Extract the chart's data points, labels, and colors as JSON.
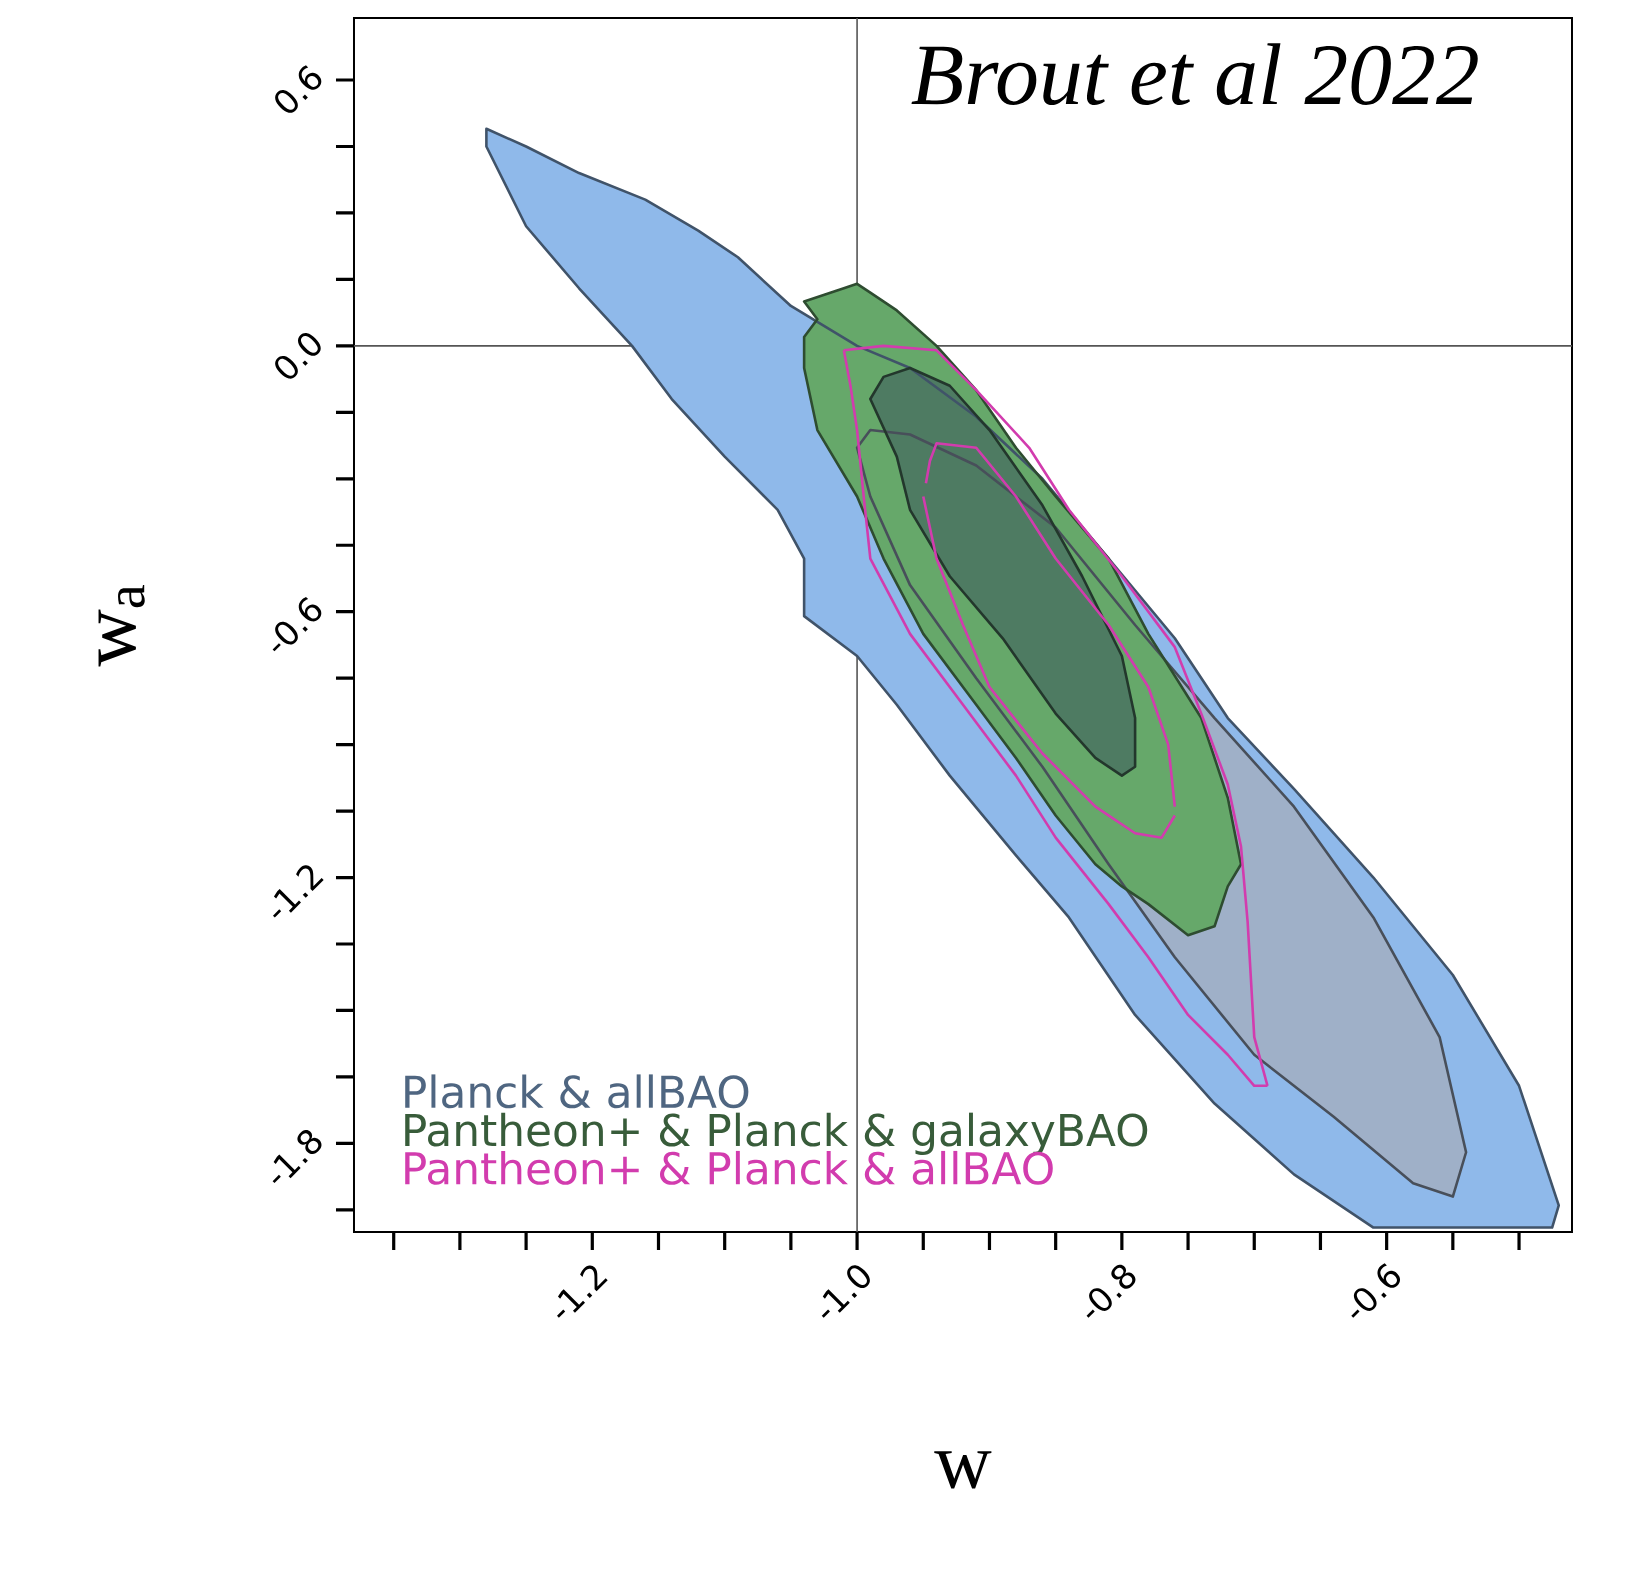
{
  "chart_data": {
    "type": "area",
    "xlabel": "w",
    "ylabel": "w$_{a}$",
    "annotations": [
      "Brout et al 2022"
    ],
    "xlim": [
      -1.38,
      -0.46
    ],
    "ylim": [
      -2.0,
      0.74
    ],
    "xticks": [
      {
        "value": -1.35,
        "label": null
      },
      {
        "value": -1.3,
        "label": null
      },
      {
        "value": -1.25,
        "label": null
      },
      -1.2,
      {
        "value": -1.15,
        "label": null
      },
      {
        "value": -1.1,
        "label": null
      },
      {
        "value": -1.05,
        "label": null
      },
      {
        "value": -1.0,
        "label": "-1.0"
      },
      {
        "value": -0.95,
        "label": null
      },
      {
        "value": -0.9,
        "label": null
      },
      {
        "value": -0.85,
        "label": null
      },
      -0.8,
      {
        "value": -0.75,
        "label": null
      },
      {
        "value": -0.7,
        "label": null
      },
      {
        "value": -0.65,
        "label": null
      },
      -0.6,
      {
        "value": -0.55,
        "label": null
      },
      {
        "value": -0.5,
        "label": null
      }
    ],
    "yticks": [
      {
        "value": -1.95,
        "label": null
      },
      -1.8,
      {
        "value": -1.65,
        "label": null
      },
      {
        "value": -1.5,
        "label": null
      },
      {
        "value": -1.35,
        "label": null
      },
      -1.2,
      {
        "value": -1.05,
        "label": null
      },
      {
        "value": -0.9,
        "label": null
      },
      {
        "value": -0.75,
        "label": null
      },
      -0.6,
      {
        "value": -0.45,
        "label": null
      },
      {
        "value": -0.3,
        "label": null
      },
      {
        "value": -0.15,
        "label": null
      },
      {
        "value": 0,
        "label": "0.0"
      },
      {
        "value": 0.15,
        "label": null
      },
      {
        "value": 0.3,
        "label": null
      },
      {
        "value": 0.45,
        "label": null
      },
      0.6
    ],
    "ref_lines": [
      {
        "axis": "x",
        "value": -1.0,
        "color": "#555555"
      },
      {
        "axis": "y",
        "value": 0,
        "color": "#555555"
      }
    ],
    "legend": "bottom left",
    "series": [
      {
        "name": "Planck & allBAO",
        "color": "#8fb9ea",
        "x": [
          -1.28,
          -1.25,
          -1.21,
          -1.16,
          -1.12,
          -1.09,
          -1.05,
          -1.0,
          -0.96,
          -0.91,
          -0.86,
          -0.81,
          -0.76,
          -0.72,
          -0.67,
          -0.61,
          -0.55,
          -0.5,
          -0.47,
          -0.475,
          -0.61,
          -0.67,
          -0.73,
          -0.79,
          -0.84,
          -0.88,
          -0.93,
          -0.97,
          -1.0,
          -1.04,
          -1.04,
          -1.06,
          -1.1,
          -1.14,
          -1.17,
          -1.21,
          -1.25,
          -1.28
        ],
        "values": [
          0.49,
          0.45,
          0.39,
          0.33,
          0.26,
          0.2,
          0.09,
          0.0,
          -0.05,
          -0.16,
          -0.3,
          -0.48,
          -0.66,
          -0.84,
          -1.0,
          -1.2,
          -1.42,
          -1.67,
          -1.94,
          -1.99,
          -1.99,
          -1.87,
          -1.71,
          -1.51,
          -1.29,
          -1.15,
          -0.97,
          -0.81,
          -0.7,
          -0.61,
          -0.48,
          -0.37,
          -0.25,
          -0.12,
          0.0,
          0.13,
          0.27,
          0.45
        ]
      },
      {
        "color": "#9fb0c8",
        "x": [
          -0.99,
          -0.96,
          -0.91,
          -0.85,
          -0.79,
          -0.73,
          -0.67,
          -0.61,
          -0.56,
          -0.54,
          -0.55,
          -0.58,
          -0.64,
          -0.7,
          -0.76,
          -0.81,
          -0.86,
          -0.91,
          -0.96,
          -0.99,
          -1.0
        ],
        "values": [
          -0.19,
          -0.2,
          -0.27,
          -0.41,
          -0.63,
          -0.84,
          -1.04,
          -1.29,
          -1.56,
          -1.82,
          -1.92,
          -1.89,
          -1.74,
          -1.6,
          -1.38,
          -1.17,
          -0.95,
          -0.75,
          -0.54,
          -0.34,
          -0.23
        ]
      },
      {
        "name": "Pantheon+ & Planck & galaxyBAO",
        "color": "#66a86a",
        "x": [
          -1.04,
          -1.01,
          -1.0,
          -0.99,
          -0.97,
          -0.94,
          -0.91,
          -0.88,
          -0.85,
          -0.81,
          -0.78,
          -0.74,
          -0.72,
          -0.71,
          -0.72,
          -0.73,
          -0.75,
          -0.78,
          -0.8,
          -0.82,
          -0.85,
          -0.88,
          -0.91,
          -0.95,
          -0.98,
          -1.0,
          -1.03,
          -1.04,
          -1.04,
          -1.03
        ],
        "values": [
          0.1,
          0.13,
          0.14,
          0.12,
          0.08,
          0.0,
          -0.1,
          -0.23,
          -0.34,
          -0.48,
          -0.65,
          -0.84,
          -1.02,
          -1.17,
          -1.22,
          -1.31,
          -1.33,
          -1.26,
          -1.22,
          -1.17,
          -1.06,
          -0.93,
          -0.81,
          -0.65,
          -0.48,
          -0.34,
          -0.19,
          -0.05,
          0.02,
          0.06
        ]
      },
      {
        "color": "#4e7b62",
        "x": [
          -0.98,
          -0.96,
          -0.93,
          -0.9,
          -0.86,
          -0.83,
          -0.8,
          -0.79,
          -0.79,
          -0.8,
          -0.82,
          -0.85,
          -0.89,
          -0.93,
          -0.96,
          -0.97,
          -0.99
        ],
        "values": [
          -0.07,
          -0.05,
          -0.09,
          -0.19,
          -0.36,
          -0.52,
          -0.7,
          -0.84,
          -0.95,
          -0.97,
          -0.93,
          -0.83,
          -0.66,
          -0.52,
          -0.37,
          -0.25,
          -0.12
        ]
      },
      {
        "name": "Pantheon+ & Planck & allBAO",
        "type": "line",
        "color": "#d23cae",
        "x": [
          -1.01,
          -0.98,
          -0.94,
          -0.91,
          -0.87,
          -0.84,
          -0.8,
          -0.76,
          -0.74,
          -0.72,
          -0.71,
          -0.705,
          -0.7,
          -0.69
        ],
        "values": [
          -0.01,
          0.0,
          -0.01,
          -0.1,
          -0.23,
          -0.37,
          -0.52,
          -0.68,
          -0.83,
          -0.99,
          -1.13,
          -1.3,
          -1.56,
          -1.67
        ]
      },
      {
        "type": "line",
        "color": "#d23cae",
        "x": [
          -1.01,
          -1.005,
          -1.0,
          -0.995,
          -0.99,
          -0.96,
          -0.92,
          -0.88,
          -0.85,
          -0.81,
          -0.78,
          -0.75,
          -0.72,
          -0.7,
          -0.69
        ],
        "values": [
          -0.01,
          -0.09,
          -0.19,
          -0.34,
          -0.48,
          -0.65,
          -0.81,
          -0.97,
          -1.11,
          -1.26,
          -1.38,
          -1.51,
          -1.6,
          -1.67,
          -1.67
        ]
      },
      {
        "type": "line",
        "color": "#d23cae",
        "x": [
          -0.948,
          -0.945,
          -0.94,
          -0.91,
          -0.88,
          -0.85,
          -0.81,
          -0.78,
          -0.765,
          -0.76
        ],
        "values": [
          -0.31,
          -0.26,
          -0.22,
          -0.23,
          -0.34,
          -0.48,
          -0.63,
          -0.77,
          -0.9,
          -1.04
        ]
      },
      {
        "type": "line",
        "color": "#d23cae",
        "x": [
          -0.95,
          -0.94,
          -0.92,
          -0.9,
          -0.86,
          -0.82,
          -0.79,
          -0.77,
          -0.76
        ],
        "values": [
          -0.34,
          -0.48,
          -0.63,
          -0.77,
          -0.92,
          -1.04,
          -1.1,
          -1.11,
          -1.06
        ]
      }
    ]
  }
}
